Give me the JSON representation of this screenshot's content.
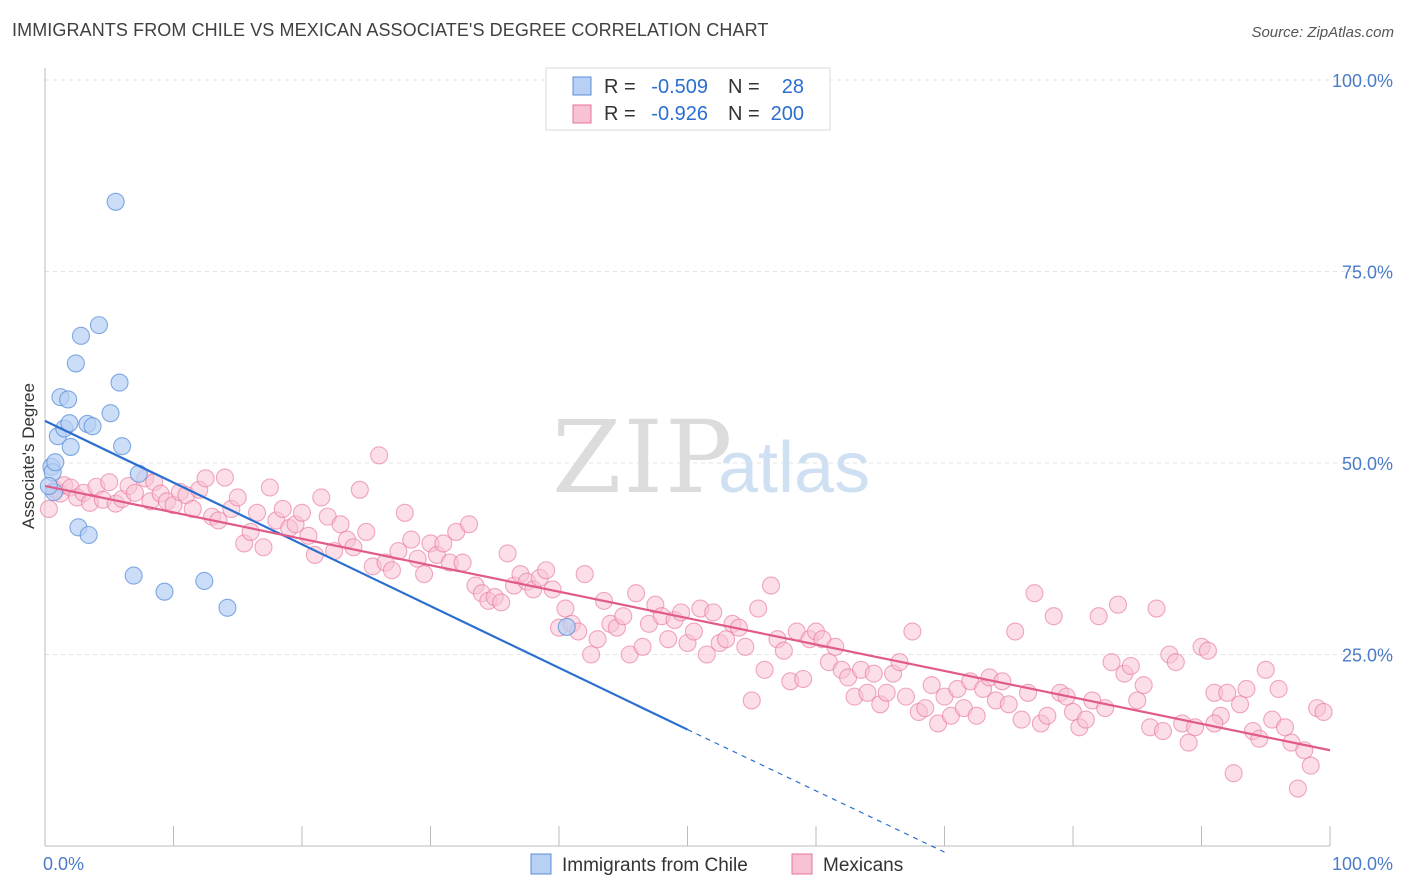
{
  "title": "IMMIGRANTS FROM CHILE VS MEXICAN ASSOCIATE'S DEGREE CORRELATION CHART",
  "source": "Source: ZipAtlas.com",
  "watermark": {
    "part1": "ZIP",
    "part2": "atlas"
  },
  "colors": {
    "chile": "#5b8fd9",
    "chile_fill": "#b7d0f3",
    "mexicans": "#e8719a",
    "mexicans_fill": "#f7c3d4",
    "chile_line": "#2a6fcf",
    "mexicans_line": "#e05a8a",
    "axis_label": "#4a7cc7"
  },
  "legend": {
    "rows": [
      {
        "r_label": "R =",
        "r_value": "-0.509",
        "n_label": "N =",
        "n_value": "28"
      },
      {
        "r_label": "R =",
        "r_value": "-0.926",
        "n_label": "N =",
        "n_value": "200"
      }
    ]
  },
  "bottom_legend": [
    "Immigrants from Chile",
    "Mexicans"
  ],
  "chart_data": {
    "type": "scatter",
    "title": "IMMIGRANTS FROM CHILE VS MEXICAN ASSOCIATE'S DEGREE CORRELATION CHART",
    "xlabel": "",
    "ylabel": "Associate's Degree",
    "xlim": [
      0,
      100
    ],
    "ylim": [
      0,
      100
    ],
    "x_tick_labels": [
      "0.0%",
      "100.0%"
    ],
    "y_ticks": [
      25,
      50,
      75,
      100
    ],
    "y_tick_labels": [
      "25.0%",
      "50.0%",
      "75.0%",
      "100.0%"
    ],
    "grid": true,
    "legend_position": "top-center",
    "series": [
      {
        "name": "Immigrants from Chile",
        "r": -0.509,
        "n": 28,
        "trend": {
          "x0": 0,
          "y0": 55.5,
          "x1": 50,
          "y1": 15.2,
          "dashed_to_x": 70,
          "dashed_to_y": -0.8
        },
        "points": [
          [
            0.5,
            49.5
          ],
          [
            0.6,
            48.8
          ],
          [
            0.7,
            46.2
          ],
          [
            0.8,
            50.1
          ],
          [
            1.0,
            53.5
          ],
          [
            1.2,
            58.6
          ],
          [
            1.5,
            54.5
          ],
          [
            1.8,
            58.3
          ],
          [
            1.9,
            55.2
          ],
          [
            2.0,
            52.1
          ],
          [
            2.4,
            63.0
          ],
          [
            2.6,
            41.6
          ],
          [
            2.8,
            66.6
          ],
          [
            3.3,
            55.1
          ],
          [
            3.4,
            40.6
          ],
          [
            3.7,
            54.8
          ],
          [
            4.2,
            68.0
          ],
          [
            5.1,
            56.5
          ],
          [
            5.5,
            84.1
          ],
          [
            5.8,
            60.5
          ],
          [
            6.0,
            52.2
          ],
          [
            6.9,
            35.3
          ],
          [
            7.3,
            48.6
          ],
          [
            9.3,
            33.2
          ],
          [
            12.4,
            34.6
          ],
          [
            14.2,
            31.1
          ],
          [
            40.6,
            28.6
          ],
          [
            0.3,
            47.0
          ]
        ]
      },
      {
        "name": "Mexicans",
        "r": -0.926,
        "n": 200,
        "trend": {
          "x0": 0,
          "y0": 47.0,
          "x1": 100,
          "y1": 12.5
        },
        "points": [
          [
            0.3,
            44.0
          ],
          [
            0.8,
            46.5
          ],
          [
            1.2,
            46.0
          ],
          [
            1.5,
            47.1
          ],
          [
            2.0,
            46.8
          ],
          [
            2.5,
            45.5
          ],
          [
            3.0,
            46.1
          ],
          [
            3.5,
            44.8
          ],
          [
            4.0,
            46.9
          ],
          [
            4.5,
            45.2
          ],
          [
            5.0,
            47.5
          ],
          [
            5.5,
            44.7
          ],
          [
            6.0,
            45.3
          ],
          [
            6.5,
            47.0
          ],
          [
            7.0,
            46.1
          ],
          [
            7.8,
            48.0
          ],
          [
            8.2,
            45.0
          ],
          [
            8.5,
            47.5
          ],
          [
            9.0,
            46.0
          ],
          [
            9.5,
            45.0
          ],
          [
            10.0,
            44.5
          ],
          [
            10.5,
            46.2
          ],
          [
            11.0,
            45.8
          ],
          [
            11.5,
            44.0
          ],
          [
            12.0,
            46.5
          ],
          [
            12.5,
            48.0
          ],
          [
            13.0,
            43.0
          ],
          [
            13.5,
            42.5
          ],
          [
            14.0,
            48.1
          ],
          [
            14.5,
            44.0
          ],
          [
            15.0,
            45.5
          ],
          [
            15.5,
            39.5
          ],
          [
            16.0,
            41.0
          ],
          [
            16.5,
            43.5
          ],
          [
            17.0,
            39.0
          ],
          [
            17.5,
            46.8
          ],
          [
            18.0,
            42.5
          ],
          [
            18.5,
            44.0
          ],
          [
            19.0,
            41.5
          ],
          [
            19.5,
            42.0
          ],
          [
            20.0,
            43.5
          ],
          [
            20.5,
            40.5
          ],
          [
            21.0,
            38.0
          ],
          [
            21.5,
            45.5
          ],
          [
            22.0,
            43.0
          ],
          [
            22.5,
            38.5
          ],
          [
            23.0,
            42.0
          ],
          [
            23.5,
            40.0
          ],
          [
            24.0,
            39.0
          ],
          [
            24.5,
            46.5
          ],
          [
            25.0,
            41.0
          ],
          [
            25.5,
            36.5
          ],
          [
            26.0,
            51.0
          ],
          [
            26.5,
            37.0
          ],
          [
            27.0,
            36.0
          ],
          [
            27.5,
            38.5
          ],
          [
            28.0,
            43.5
          ],
          [
            28.5,
            40.0
          ],
          [
            29.0,
            37.5
          ],
          [
            29.5,
            35.5
          ],
          [
            30.0,
            39.5
          ],
          [
            30.5,
            38.0
          ],
          [
            31.0,
            39.5
          ],
          [
            31.5,
            37.0
          ],
          [
            32.0,
            41.0
          ],
          [
            32.5,
            37.0
          ],
          [
            33.0,
            42.0
          ],
          [
            33.5,
            34.0
          ],
          [
            34.0,
            33.0
          ],
          [
            34.5,
            32.0
          ],
          [
            35.0,
            32.5
          ],
          [
            35.5,
            31.8
          ],
          [
            36.0,
            38.2
          ],
          [
            36.5,
            34.0
          ],
          [
            37.0,
            35.5
          ],
          [
            37.5,
            34.5
          ],
          [
            38.0,
            33.5
          ],
          [
            38.5,
            35.0
          ],
          [
            39.0,
            36.0
          ],
          [
            39.5,
            33.5
          ],
          [
            40.0,
            28.5
          ],
          [
            40.5,
            31.0
          ],
          [
            41.0,
            29.0
          ],
          [
            41.5,
            28.0
          ],
          [
            42.0,
            35.5
          ],
          [
            42.5,
            25.0
          ],
          [
            43.0,
            27.0
          ],
          [
            43.5,
            32.0
          ],
          [
            44.0,
            29.0
          ],
          [
            44.5,
            28.5
          ],
          [
            45.0,
            30.0
          ],
          [
            45.5,
            25.0
          ],
          [
            46.0,
            33.0
          ],
          [
            46.5,
            26.0
          ],
          [
            47.0,
            29.0
          ],
          [
            47.5,
            31.5
          ],
          [
            48.0,
            30.0
          ],
          [
            48.5,
            27.0
          ],
          [
            49.0,
            29.5
          ],
          [
            49.5,
            30.5
          ],
          [
            50.0,
            26.5
          ],
          [
            50.5,
            28.0
          ],
          [
            51.0,
            31.0
          ],
          [
            51.5,
            25.0
          ],
          [
            52.0,
            30.5
          ],
          [
            52.5,
            26.5
          ],
          [
            53.0,
            27.0
          ],
          [
            53.5,
            29.0
          ],
          [
            54.0,
            28.5
          ],
          [
            54.5,
            26.0
          ],
          [
            55.0,
            19.0
          ],
          [
            55.5,
            31.0
          ],
          [
            56.0,
            23.0
          ],
          [
            56.5,
            34.0
          ],
          [
            57.0,
            27.0
          ],
          [
            57.5,
            25.5
          ],
          [
            58.0,
            21.5
          ],
          [
            58.5,
            28.0
          ],
          [
            59.0,
            21.8
          ],
          [
            59.5,
            27.0
          ],
          [
            60.0,
            28.0
          ],
          [
            60.5,
            27.0
          ],
          [
            61.0,
            24.0
          ],
          [
            61.5,
            26.0
          ],
          [
            62.0,
            23.0
          ],
          [
            62.5,
            22.0
          ],
          [
            63.0,
            19.5
          ],
          [
            63.5,
            23.0
          ],
          [
            64.0,
            20.0
          ],
          [
            64.5,
            22.5
          ],
          [
            65.0,
            18.5
          ],
          [
            65.5,
            20.0
          ],
          [
            66.0,
            22.5
          ],
          [
            66.5,
            24.0
          ],
          [
            67.0,
            19.5
          ],
          [
            67.5,
            28.0
          ],
          [
            68.0,
            17.5
          ],
          [
            68.5,
            18.0
          ],
          [
            69.0,
            21.0
          ],
          [
            69.5,
            16.0
          ],
          [
            70.0,
            19.5
          ],
          [
            70.5,
            17.0
          ],
          [
            71.0,
            20.5
          ],
          [
            71.5,
            18.0
          ],
          [
            72.0,
            21.5
          ],
          [
            72.5,
            17.0
          ],
          [
            73.0,
            20.5
          ],
          [
            73.5,
            22.0
          ],
          [
            74.0,
            19.0
          ],
          [
            74.5,
            21.5
          ],
          [
            75.0,
            18.5
          ],
          [
            75.5,
            28.0
          ],
          [
            76.0,
            16.5
          ],
          [
            76.5,
            20.0
          ],
          [
            77.0,
            33.0
          ],
          [
            77.5,
            16.0
          ],
          [
            78.0,
            17.0
          ],
          [
            78.5,
            30.0
          ],
          [
            79.0,
            20.0
          ],
          [
            79.5,
            19.5
          ],
          [
            80.0,
            17.5
          ],
          [
            80.5,
            15.5
          ],
          [
            81.0,
            16.5
          ],
          [
            81.5,
            19.0
          ],
          [
            82.0,
            30.0
          ],
          [
            82.5,
            18.0
          ],
          [
            83.0,
            24.0
          ],
          [
            83.5,
            31.5
          ],
          [
            84.0,
            22.5
          ],
          [
            84.5,
            23.5
          ],
          [
            85.0,
            19.0
          ],
          [
            85.5,
            21.0
          ],
          [
            86.0,
            15.5
          ],
          [
            86.5,
            31.0
          ],
          [
            87.0,
            15.0
          ],
          [
            87.5,
            25.0
          ],
          [
            88.0,
            24.0
          ],
          [
            88.5,
            16.0
          ],
          [
            89.0,
            13.5
          ],
          [
            89.5,
            15.5
          ],
          [
            90.0,
            26.0
          ],
          [
            90.5,
            25.5
          ],
          [
            91.0,
            20.0
          ],
          [
            91.5,
            17.0
          ],
          [
            92.0,
            20.0
          ],
          [
            92.5,
            9.5
          ],
          [
            93.0,
            18.5
          ],
          [
            93.5,
            20.5
          ],
          [
            94.0,
            15.0
          ],
          [
            94.5,
            14.0
          ],
          [
            95.0,
            23.0
          ],
          [
            95.5,
            16.5
          ],
          [
            96.0,
            20.5
          ],
          [
            96.5,
            15.5
          ],
          [
            97.0,
            13.5
          ],
          [
            97.5,
            7.5
          ],
          [
            98.0,
            12.5
          ],
          [
            98.5,
            10.5
          ],
          [
            99.0,
            18.0
          ],
          [
            99.5,
            17.5
          ],
          [
            91.0,
            16.0
          ]
        ]
      }
    ]
  }
}
